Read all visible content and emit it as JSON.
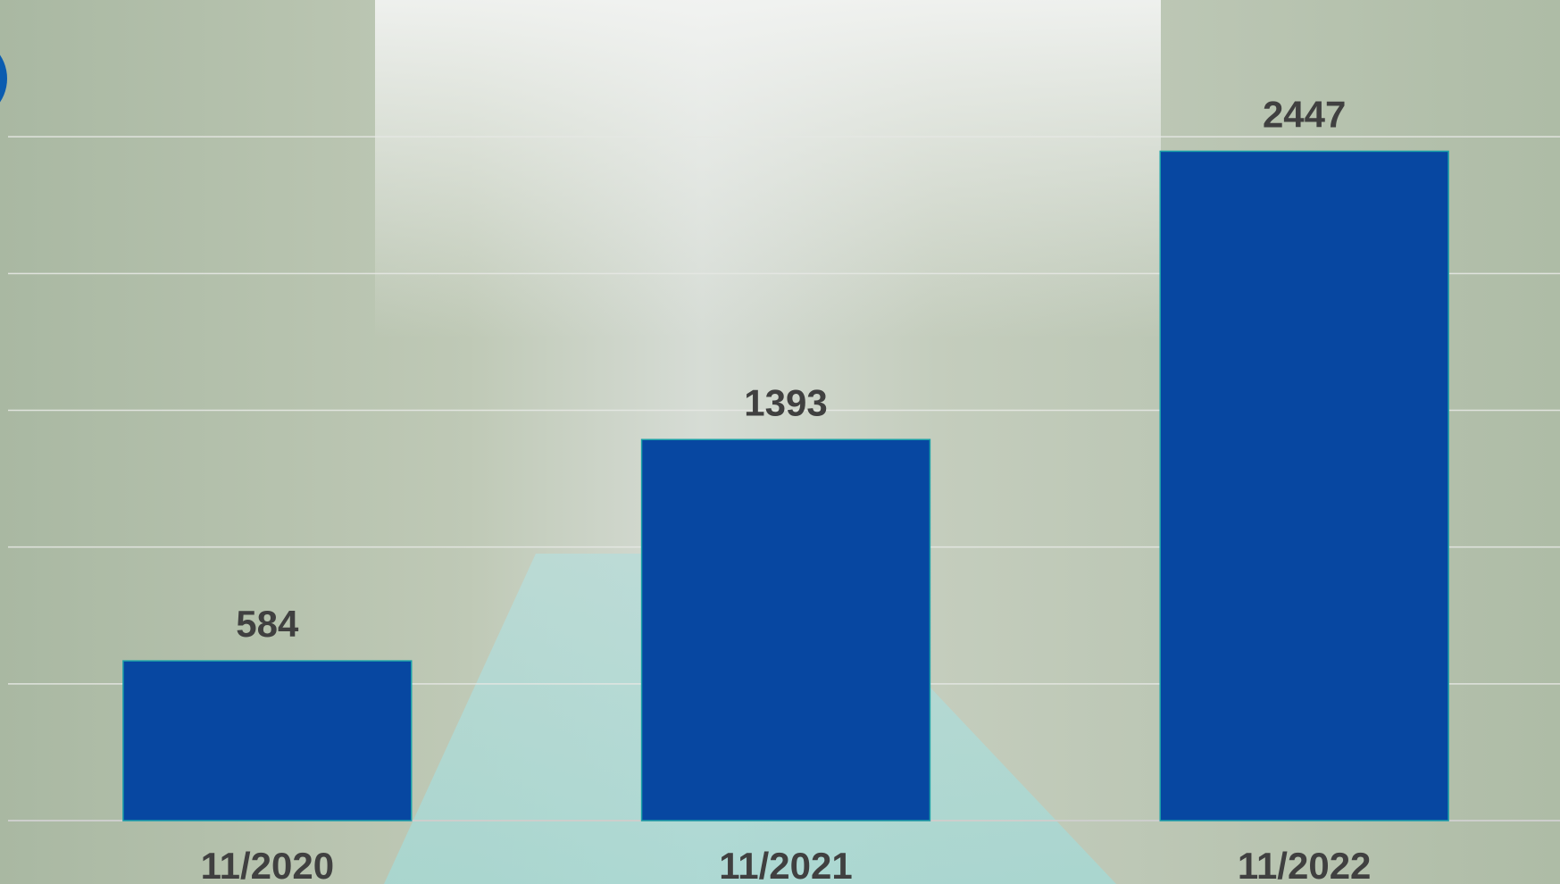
{
  "chart_data": {
    "type": "bar",
    "categories": [
      "11/2020",
      "11/2021",
      "11/2022"
    ],
    "values": [
      584,
      1393,
      2447
    ],
    "color": "#0747a1",
    "ylim": [
      0,
      3000
    ],
    "yticks": [
      0,
      500,
      1000,
      1500,
      2000,
      2500
    ],
    "grid": true
  }
}
